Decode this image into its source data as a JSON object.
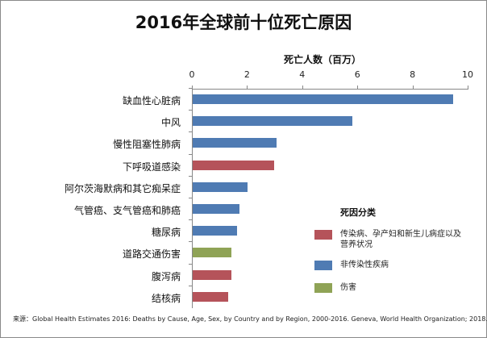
{
  "chart_data": {
    "type": "bar",
    "orientation": "horizontal",
    "title": "2016年全球前十位死亡原因",
    "xlabel": "死亡人数（百万）",
    "ylabel": "",
    "xlim": [
      0,
      10
    ],
    "xticks": [
      "0",
      "2",
      "4",
      "6",
      "8",
      "10"
    ],
    "axis_position": "top",
    "grid": false,
    "categories": [
      "缺血性心脏病",
      "中风",
      "慢性阻塞性肺病",
      "下呼吸道感染",
      "阿尔茨海默病和其它痴呆症",
      "气管癌、支气管癌和肺癌",
      "糖尿病",
      "道路交通伤害",
      "腹泻病",
      "结核病"
    ],
    "values": [
      9.45,
      5.8,
      3.05,
      2.95,
      2.0,
      1.7,
      1.6,
      1.4,
      1.4,
      1.3
    ],
    "groups": [
      "非传染性疾病",
      "非传染性疾病",
      "非传染性疾病",
      "传染病、孕产妇和新生儿病症以及营养状况",
      "非传染性疾病",
      "非传染性疾病",
      "非传染性疾病",
      "伤害",
      "传染病、孕产妇和新生儿病症以及营养状况",
      "传染病、孕产妇和新生儿病症以及营养状况"
    ],
    "legend": {
      "title": "死因分类",
      "position": "right",
      "entries": [
        {
          "label": "传染病、孕产妇和新生儿病症以及营养状况",
          "color": "#b5535a"
        },
        {
          "label": "非传染性疾病",
          "color": "#4f7bb3"
        },
        {
          "label": "伤害",
          "color": "#8fa356"
        }
      ]
    },
    "source": "来源：Global Health Estimates 2016: Deaths by Cause, Age, Sex, by Country and by Region, 2000-2016. Geneva, World Health Organization; 2018."
  },
  "colors": {
    "communicable": "#b5535a",
    "noncommunicable": "#4f7bb3",
    "injury": "#8fa356"
  }
}
